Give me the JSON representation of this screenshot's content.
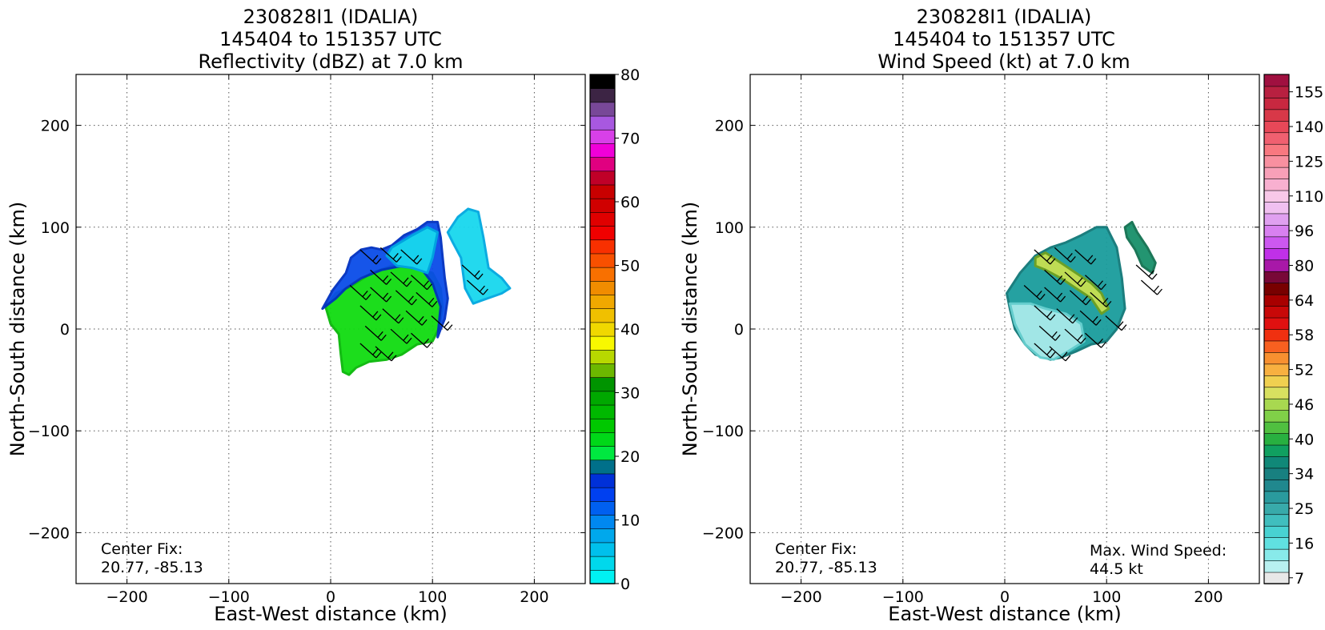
{
  "panels": [
    {
      "title_lines": [
        "230828I1 (IDALIA)",
        "145404 to 151357 UTC",
        "Reflectivity (dBZ) at 7.0 km"
      ],
      "xlabel": "East-West distance (km)",
      "ylabel": "North-South distance (km)",
      "center_fix": {
        "label": "Center Fix:",
        "value": "20.77, -85.13"
      },
      "colorbar_ticks": [
        "0",
        "10",
        "20",
        "30",
        "40",
        "50",
        "60",
        "70",
        "80"
      ],
      "colorbar_tick_values": [
        0,
        10,
        20,
        30,
        40,
        50,
        60,
        70,
        80
      ]
    },
    {
      "title_lines": [
        "230828I1 (IDALIA)",
        "145404 to 151357 UTC",
        "Wind Speed (kt) at 7.0 km"
      ],
      "xlabel": "East-West distance (km)",
      "ylabel": "North-South distance (km)",
      "center_fix": {
        "label": "Center Fix:",
        "value": "20.77, -85.13"
      },
      "max_wind": {
        "label": "Max. Wind Speed:",
        "value": "44.5 kt"
      },
      "colorbar_ticks": [
        "7",
        "16",
        "25",
        "34",
        "40",
        "46",
        "52",
        "58",
        "64",
        "80",
        "96",
        "110",
        "125",
        "140",
        "155"
      ]
    }
  ],
  "chart_data": [
    {
      "type": "heatmap",
      "title": "230828I1 (IDALIA) 145404 to 151357 UTC Reflectivity (dBZ) at 7.0 km",
      "xlabel": "East-West distance (km)",
      "ylabel": "North-South distance (km)",
      "xlim": [
        -250,
        250
      ],
      "ylim": [
        -250,
        250
      ],
      "xticks": [
        -200,
        -100,
        0,
        100,
        200
      ],
      "yticks": [
        -200,
        -100,
        0,
        100,
        200
      ],
      "grid": true,
      "colorbar": {
        "min": 0,
        "max": 80,
        "step": 2.5,
        "colors": [
          "#00f2f2",
          "#00d8ec",
          "#00c0ec",
          "#00a8ec",
          "#0088f0",
          "#0060f0",
          "#0040f0",
          "#0030d8",
          "#00708a",
          "#00e840",
          "#00d818",
          "#00c800",
          "#00b800",
          "#00a800",
          "#009400",
          "#6cb800",
          "#b8d800",
          "#f8f800",
          "#f0d800",
          "#f0c000",
          "#f0a800",
          "#f08c00",
          "#f87000",
          "#f85000",
          "#f83000",
          "#f00000",
          "#e00000",
          "#d00000",
          "#c80000",
          "#c00028",
          "#e00080",
          "#f000d8",
          "#d840e8",
          "#a858e0",
          "#784898",
          "#3c2444",
          "#000000"
        ]
      },
      "storm_regions": [
        {
          "level": "green",
          "polygon": [
            [
              -5,
              22
            ],
            [
              5,
              35
            ],
            [
              20,
              42
            ],
            [
              40,
              55
            ],
            [
              60,
              62
            ],
            [
              80,
              60
            ],
            [
              100,
              55
            ],
            [
              108,
              40
            ],
            [
              110,
              20
            ],
            [
              106,
              0
            ],
            [
              100,
              -12
            ],
            [
              85,
              -15
            ],
            [
              70,
              -25
            ],
            [
              55,
              -30
            ],
            [
              38,
              -32
            ],
            [
              25,
              -38
            ],
            [
              18,
              -45
            ],
            [
              12,
              -42
            ],
            [
              10,
              -25
            ],
            [
              8,
              -5
            ],
            [
              0,
              5
            ]
          ]
        },
        {
          "level": "blue",
          "polygon": [
            [
              -8,
              20
            ],
            [
              2,
              38
            ],
            [
              15,
              55
            ],
            [
              20,
              70
            ],
            [
              30,
              78
            ],
            [
              40,
              80
            ],
            [
              50,
              78
            ],
            [
              60,
              82
            ],
            [
              72,
              92
            ],
            [
              85,
              98
            ],
            [
              95,
              105
            ],
            [
              105,
              105
            ],
            [
              108,
              90
            ],
            [
              110,
              70
            ],
            [
              112,
              50
            ],
            [
              115,
              30
            ],
            [
              112,
              10
            ],
            [
              108,
              0
            ],
            [
              105,
              -8
            ],
            [
              108,
              22
            ],
            [
              100,
              45
            ],
            [
              90,
              58
            ],
            [
              70,
              62
            ],
            [
              50,
              58
            ],
            [
              30,
              50
            ],
            [
              15,
              40
            ],
            [
              5,
              30
            ]
          ]
        },
        {
          "level": "cyan",
          "polygon": [
            [
              115,
              95
            ],
            [
              125,
              110
            ],
            [
              135,
              118
            ],
            [
              145,
              115
            ],
            [
              150,
              90
            ],
            [
              155,
              60
            ],
            [
              168,
              50
            ],
            [
              176,
              40
            ],
            [
              168,
              35
            ],
            [
              148,
              28
            ],
            [
              140,
              25
            ],
            [
              132,
              40
            ],
            [
              128,
              70
            ],
            [
              120,
              85
            ]
          ]
        },
        {
          "level": "cyan",
          "polygon": [
            [
              60,
              80
            ],
            [
              80,
              92
            ],
            [
              95,
              100
            ],
            [
              105,
              95
            ],
            [
              100,
              70
            ],
            [
              95,
              55
            ],
            [
              80,
              60
            ],
            [
              65,
              62
            ],
            [
              55,
              72
            ]
          ]
        }
      ]
    },
    {
      "type": "heatmap",
      "title": "230828I1 (IDALIA) 145404 to 151357 UTC Wind Speed (kt) at 7.0 km",
      "xlabel": "East-West distance (km)",
      "ylabel": "North-South distance (km)",
      "xlim": [
        -250,
        250
      ],
      "ylim": [
        -250,
        250
      ],
      "xticks": [
        -200,
        -100,
        0,
        100,
        200
      ],
      "yticks": [
        -200,
        -100,
        0,
        100,
        200
      ],
      "grid": true,
      "max_wind_kt": 44.5,
      "colorbar": {
        "labeled_ticks": [
          7,
          16,
          25,
          34,
          40,
          46,
          52,
          58,
          64,
          80,
          96,
          110,
          125,
          140,
          155
        ],
        "colors": [
          "#e8e8e8",
          "#b8f0f0",
          "#88eaea",
          "#60e0e0",
          "#48d2d2",
          "#40bebe",
          "#38aaaa",
          "#2a9a9e",
          "#20888e",
          "#188080",
          "#108878",
          "#10a060",
          "#28b040",
          "#50c040",
          "#80d048",
          "#a8d850",
          "#d8e060",
          "#f0d050",
          "#f8b040",
          "#f89030",
          "#f86020",
          "#f03010",
          "#e01010",
          "#c80808",
          "#a80000",
          "#780000",
          "#780838",
          "#a818a8",
          "#c030e8",
          "#cc58f0",
          "#d880f0",
          "#e0a0f0",
          "#f0c0f0",
          "#f8c8e8",
          "#f8b0d0",
          "#f8a0b8",
          "#f890a0",
          "#f87880",
          "#f06070",
          "#e84858",
          "#d83848",
          "#c82840",
          "#b82040",
          "#a01040"
        ]
      },
      "storm_regions": [
        {
          "level": "teal",
          "polygon": [
            [
              2,
              35
            ],
            [
              15,
              55
            ],
            [
              30,
              72
            ],
            [
              45,
              80
            ],
            [
              60,
              85
            ],
            [
              75,
              92
            ],
            [
              90,
              100
            ],
            [
              100,
              100
            ],
            [
              110,
              80
            ],
            [
              115,
              50
            ],
            [
              118,
              20
            ],
            [
              110,
              0
            ],
            [
              100,
              -12
            ],
            [
              85,
              -15
            ],
            [
              70,
              -22
            ],
            [
              55,
              -28
            ],
            [
              45,
              -30
            ],
            [
              30,
              -25
            ],
            [
              20,
              -15
            ],
            [
              10,
              0
            ],
            [
              5,
              20
            ]
          ]
        },
        {
          "level": "light",
          "polygon": [
            [
              5,
              25
            ],
            [
              10,
              5
            ],
            [
              20,
              -15
            ],
            [
              35,
              -28
            ],
            [
              48,
              -30
            ],
            [
              62,
              -22
            ],
            [
              78,
              -12
            ],
            [
              75,
              5
            ],
            [
              60,
              15
            ],
            [
              40,
              20
            ],
            [
              25,
              25
            ]
          ]
        },
        {
          "level": "yellow-green",
          "polygon": [
            [
              30,
              70
            ],
            [
              40,
              75
            ],
            [
              55,
              65
            ],
            [
              70,
              55
            ],
            [
              85,
              45
            ],
            [
              95,
              35
            ],
            [
              102,
              20
            ],
            [
              95,
              15
            ],
            [
              85,
              30
            ],
            [
              70,
              40
            ],
            [
              55,
              50
            ],
            [
              40,
              58
            ],
            [
              30,
              62
            ]
          ]
        },
        {
          "level": "green",
          "polygon": [
            [
              118,
              100
            ],
            [
              125,
              105
            ],
            [
              130,
              95
            ],
            [
              140,
              80
            ],
            [
              148,
              65
            ],
            [
              145,
              55
            ],
            [
              135,
              62
            ],
            [
              128,
              78
            ],
            [
              120,
              90
            ]
          ]
        }
      ]
    }
  ]
}
